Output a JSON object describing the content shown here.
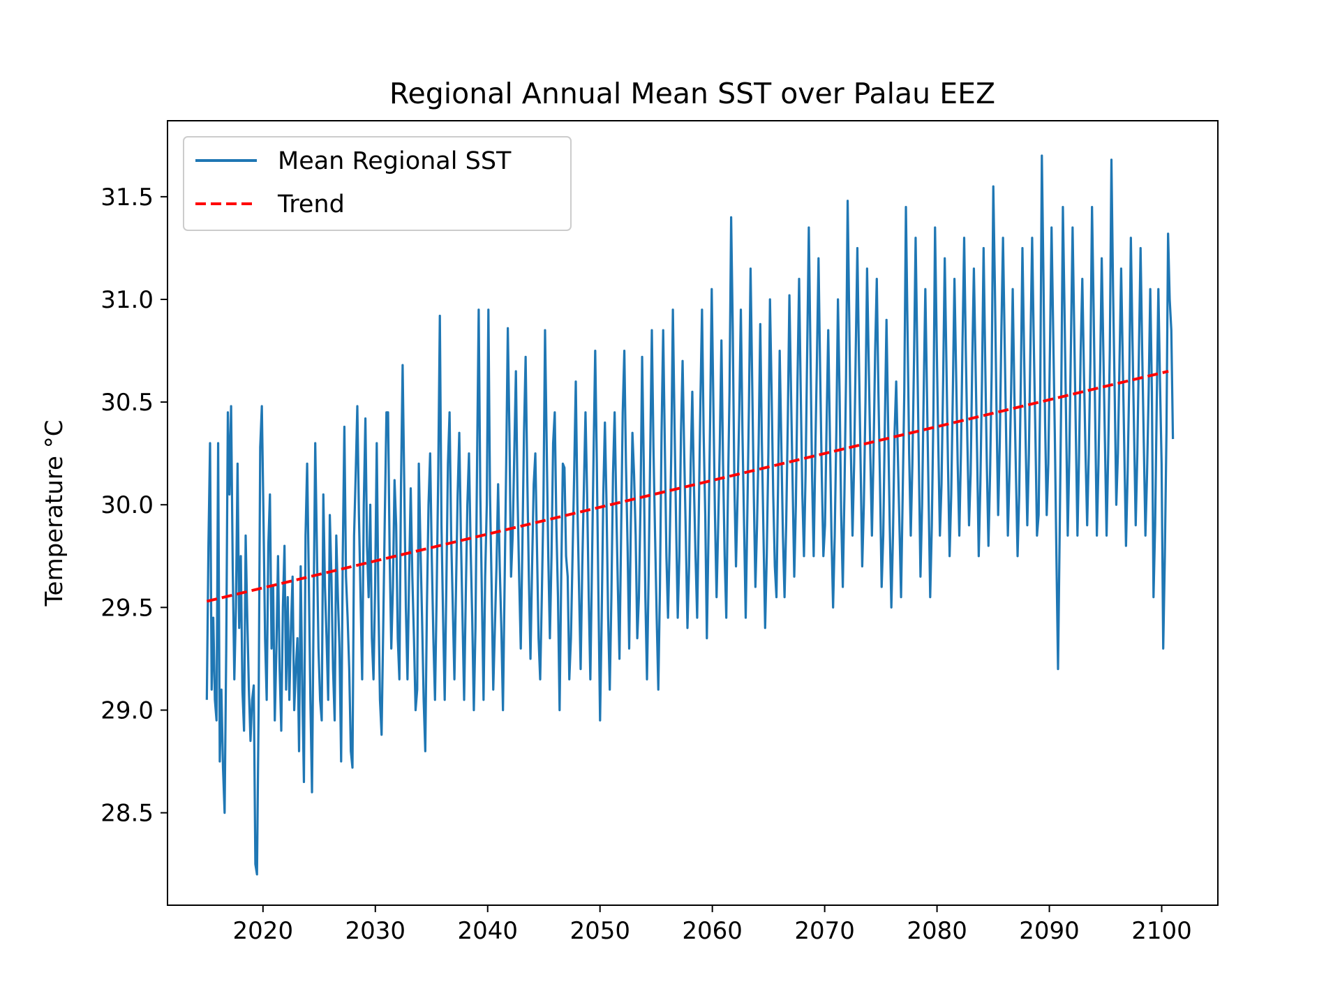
{
  "chart_data": {
    "type": "line",
    "title": "Regional Annual Mean SST over Palau EEZ",
    "xlabel": "",
    "ylabel": "Temperature °C",
    "xlim": [
      2011.5,
      2105
    ],
    "ylim": [
      28.05,
      31.87
    ],
    "xticks": [
      2020,
      2030,
      2040,
      2050,
      2060,
      2070,
      2080,
      2090,
      2100
    ],
    "yticks": [
      28.5,
      29.0,
      29.5,
      30.0,
      30.5,
      31.0,
      31.5
    ],
    "yticklabels": [
      "28.5",
      "29.0",
      "29.5",
      "30.0",
      "30.5",
      "31.0",
      "31.5"
    ],
    "grid": false,
    "legend_position": "upper-left",
    "series": [
      {
        "name": "Mean Regional SST",
        "color": "#1f77b4",
        "style": "solid",
        "x_start": 2015.0,
        "x_end": 2101.0,
        "values": [
          29.05,
          29.8,
          30.3,
          29.1,
          29.45,
          29.05,
          28.95,
          30.3,
          28.75,
          29.1,
          28.72,
          28.5,
          29.3,
          30.45,
          30.05,
          30.48,
          29.7,
          29.15,
          29.5,
          30.2,
          29.4,
          29.75,
          29.1,
          28.9,
          29.85,
          29.45,
          29.1,
          28.85,
          29.05,
          29.12,
          28.25,
          28.2,
          29.0,
          30.28,
          30.48,
          29.95,
          29.35,
          29.05,
          29.8,
          30.05,
          29.3,
          29.6,
          28.95,
          29.3,
          29.75,
          29.2,
          28.9,
          29.5,
          29.8,
          29.1,
          29.55,
          29.05,
          29.4,
          29.65,
          29.0,
          29.2,
          29.35,
          28.8,
          29.7,
          29.1,
          28.65,
          29.85,
          30.2,
          29.65,
          29.05,
          28.6,
          29.5,
          30.3,
          29.8,
          29.3,
          29.05,
          28.95,
          30.05,
          29.6,
          29.35,
          29.05,
          29.95,
          29.65,
          29.2,
          28.95,
          29.85,
          29.55,
          29.3,
          28.75,
          29.75,
          30.38,
          29.65,
          29.45,
          29.2,
          28.8,
          28.72,
          29.85,
          30.15,
          30.48,
          29.95,
          29.55,
          29.15,
          30.0,
          30.42,
          29.8,
          29.55,
          30.0,
          29.35,
          29.15,
          29.6,
          30.3,
          29.55,
          29.05,
          28.88,
          29.4,
          29.95,
          30.45,
          30.45,
          29.75,
          29.3,
          29.6,
          30.12,
          29.9,
          29.35,
          29.15,
          30.1,
          30.68,
          30.1,
          29.5,
          29.15,
          29.65,
          30.08,
          29.65,
          29.35,
          29.0,
          29.1,
          30.2,
          29.8,
          29.45,
          29.05,
          28.8,
          29.5,
          30.0,
          30.25,
          29.75,
          29.35,
          29.05,
          29.55,
          30.15,
          30.92,
          29.9,
          29.45,
          29.05,
          29.6,
          30.2,
          30.45,
          29.85,
          29.5,
          29.15,
          29.6,
          30.05,
          30.35,
          29.85,
          29.45,
          29.05,
          29.55,
          30.0,
          30.25,
          29.8,
          29.45,
          29.0,
          29.4,
          30.2,
          30.95,
          30.05,
          29.55,
          29.05,
          29.65,
          30.0,
          30.95,
          30.05,
          29.6,
          29.1,
          29.4,
          29.7,
          30.1,
          29.7,
          29.4,
          29.0,
          29.6,
          30.2,
          30.86,
          30.35,
          29.65,
          29.85,
          30.25,
          30.65,
          30.05,
          29.65,
          29.3,
          29.8,
          30.35,
          30.72,
          30.15,
          29.65,
          29.25,
          29.7,
          30.1,
          30.25,
          29.8,
          29.35,
          29.15,
          29.55,
          30.0,
          30.85,
          30.3,
          29.75,
          29.35,
          29.75,
          30.3,
          30.45,
          29.9,
          29.55,
          29.0,
          29.65,
          30.2,
          30.18,
          29.75,
          29.65,
          29.15,
          29.35,
          29.75,
          30.15,
          30.6,
          30.0,
          29.6,
          29.2,
          29.7,
          30.08,
          30.45,
          30.05,
          29.55,
          29.15,
          29.7,
          30.25,
          30.75,
          30.2,
          29.55,
          28.95,
          29.45,
          30.05,
          30.4,
          30.0,
          29.45,
          29.1,
          29.55,
          30.15,
          30.45,
          30.0,
          29.6,
          29.25,
          29.85,
          30.45,
          30.75,
          30.2,
          29.8,
          29.3,
          29.9,
          30.35,
          30.15,
          29.85,
          29.35,
          29.55,
          30.0,
          30.72,
          30.2,
          29.55,
          29.15,
          29.65,
          30.25,
          30.85,
          30.28,
          29.85,
          29.45,
          29.1,
          29.6,
          30.35,
          30.85,
          30.3,
          29.75,
          29.45,
          29.8,
          30.25,
          30.95,
          30.4,
          29.9,
          29.45,
          29.75,
          30.35,
          30.7,
          30.25,
          29.85,
          29.4,
          29.7,
          30.2,
          30.55,
          30.1,
          29.75,
          29.45,
          29.95,
          30.5,
          30.95,
          30.35,
          29.95,
          29.35,
          29.85,
          30.4,
          31.05,
          30.5,
          29.95,
          29.55,
          29.9,
          30.3,
          30.8,
          30.2,
          29.75,
          29.45,
          30.05,
          30.55,
          31.4,
          30.85,
          30.1,
          29.7,
          30.05,
          30.45,
          30.95,
          30.35,
          29.9,
          29.45,
          29.95,
          30.48,
          31.15,
          30.6,
          30.05,
          29.6,
          29.9,
          30.3,
          30.88,
          30.3,
          29.85,
          29.4,
          29.75,
          30.25,
          31.0,
          30.55,
          30.05,
          29.7,
          29.55,
          30.1,
          30.75,
          30.3,
          29.85,
          29.55,
          29.9,
          30.4,
          31.02,
          30.55,
          30.1,
          29.65,
          30.0,
          30.6,
          31.1,
          30.55,
          30.05,
          29.75,
          30.15,
          30.75,
          31.35,
          30.75,
          30.15,
          29.75,
          30.25,
          30.7,
          31.2,
          30.65,
          30.15,
          29.75,
          29.9,
          30.4,
          30.85,
          30.35,
          29.85,
          29.5,
          29.85,
          30.35,
          31.0,
          30.55,
          29.95,
          29.6,
          30.05,
          30.62,
          31.48,
          30.9,
          30.25,
          29.85,
          30.2,
          30.75,
          31.25,
          30.7,
          30.2,
          29.7,
          30.0,
          30.5,
          31.15,
          30.7,
          30.25,
          29.85,
          30.25,
          30.75,
          31.1,
          30.55,
          30.1,
          29.6,
          29.85,
          30.4,
          30.9,
          30.4,
          29.9,
          29.5,
          29.85,
          30.35,
          30.6,
          30.25,
          29.9,
          29.55,
          30.05,
          30.55,
          31.45,
          30.85,
          30.25,
          29.85,
          30.2,
          30.7,
          31.3,
          30.75,
          30.2,
          29.65,
          30.0,
          30.55,
          31.05,
          30.55,
          30.05,
          29.55,
          29.9,
          30.45,
          31.35,
          30.8,
          30.3,
          29.85,
          30.1,
          30.6,
          31.2,
          30.7,
          30.2,
          29.75,
          30.05,
          30.55,
          31.1,
          30.65,
          30.2,
          29.85,
          30.25,
          30.8,
          31.3,
          30.75,
          30.3,
          29.9,
          30.15,
          30.7,
          31.15,
          30.7,
          30.25,
          29.75,
          30.1,
          30.6,
          31.25,
          30.7,
          30.2,
          29.8,
          30.15,
          30.65,
          31.55,
          31.05,
          30.45,
          29.95,
          30.3,
          30.85,
          31.3,
          30.8,
          30.3,
          29.85,
          30.15,
          30.55,
          31.05,
          30.55,
          30.15,
          29.75,
          30.05,
          30.6,
          31.25,
          30.75,
          30.3,
          29.9,
          30.25,
          30.8,
          31.3,
          30.8,
          30.35,
          29.85,
          29.95,
          30.55,
          31.7,
          31.1,
          30.4,
          29.95,
          30.2,
          30.75,
          31.35,
          30.85,
          30.35,
          29.75,
          29.2,
          29.85,
          30.55,
          31.45,
          30.95,
          30.4,
          29.85,
          30.25,
          30.8,
          31.35,
          30.85,
          30.35,
          29.85,
          30.25,
          30.75,
          31.1,
          30.65,
          30.25,
          29.9,
          30.25,
          30.7,
          31.45,
          30.95,
          30.4,
          29.85,
          30.2,
          30.65,
          31.2,
          30.75,
          30.3,
          29.85,
          30.25,
          30.75,
          31.68,
          31.05,
          30.55,
          30.0,
          30.25,
          30.7,
          31.15,
          30.7,
          30.25,
          29.8,
          30.15,
          30.6,
          31.3,
          30.8,
          30.35,
          29.9,
          30.25,
          30.75,
          31.25,
          30.75,
          30.3,
          29.85,
          30.15,
          30.55,
          31.05,
          30.55,
          29.55,
          29.9,
          30.5,
          31.05,
          30.6,
          30.2,
          29.3,
          29.75,
          30.35,
          31.32,
          31.0,
          30.85,
          30.32
        ]
      },
      {
        "name": "Trend",
        "color": "#ff0000",
        "style": "dashed",
        "x": [
          2015.0,
          2100.6
        ],
        "values": [
          29.53,
          30.65
        ]
      }
    ]
  }
}
